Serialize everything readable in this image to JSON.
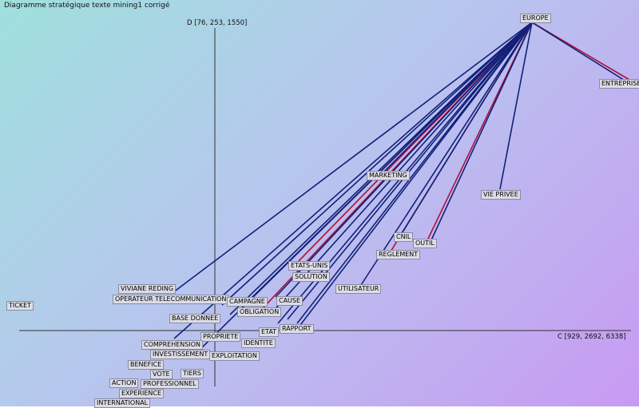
{
  "title": "Diagramme stratégique texte mining1 corrigé",
  "axes": {
    "vertical_label": "D [76, 253, 1550]",
    "horizontal_label": "C [929, 2692, 6338]"
  },
  "colors": {
    "link_blue": "#10207a",
    "link_red": "#b0103a",
    "axis": "#333333"
  },
  "terms": [
    {
      "id": "europe",
      "label": "EUROPE"
    },
    {
      "id": "entreprise",
      "label": "ENTREPRISE"
    },
    {
      "id": "marketing",
      "label": "MARKETING"
    },
    {
      "id": "vie-privee",
      "label": "VIE PRIVEE"
    },
    {
      "id": "cnil",
      "label": "CNIL"
    },
    {
      "id": "outil",
      "label": "OUTIL"
    },
    {
      "id": "reglement",
      "label": "REGLEMENT"
    },
    {
      "id": "etats-unis",
      "label": "ETATS-UNIS"
    },
    {
      "id": "solution",
      "label": "SOLUTION"
    },
    {
      "id": "utilisateur",
      "label": "UTILISATEUR"
    },
    {
      "id": "viviane-reding",
      "label": "VIVIANE REDING"
    },
    {
      "id": "operateur",
      "label": "OPERATEUR TELECOMMUNICATION"
    },
    {
      "id": "campagne",
      "label": "CAMPAGNE"
    },
    {
      "id": "cause",
      "label": "CAUSE"
    },
    {
      "id": "ticket",
      "label": "TICKET"
    },
    {
      "id": "obligation",
      "label": "OBLIGATION"
    },
    {
      "id": "base-donnee",
      "label": "BASE DONNEE"
    },
    {
      "id": "rapport",
      "label": "RAPPORT"
    },
    {
      "id": "etat",
      "label": "ETAT"
    },
    {
      "id": "propriete",
      "label": "PROPRIETE"
    },
    {
      "id": "identite",
      "label": "IDENTITE"
    },
    {
      "id": "comprehension",
      "label": "COMPREHENSION"
    },
    {
      "id": "investissement",
      "label": "INVESTISSEMENT"
    },
    {
      "id": "exploitation",
      "label": "EXPLOITATION"
    },
    {
      "id": "benefice",
      "label": "BENEFICE"
    },
    {
      "id": "vote",
      "label": "VOTE"
    },
    {
      "id": "tiers",
      "label": "TIERS"
    },
    {
      "id": "action",
      "label": "ACTION"
    },
    {
      "id": "professionnel",
      "label": "PROFESSIONNEL"
    },
    {
      "id": "experience",
      "label": "EXPERIENCE"
    },
    {
      "id": "international",
      "label": "INTERNATIONAL"
    }
  ]
}
